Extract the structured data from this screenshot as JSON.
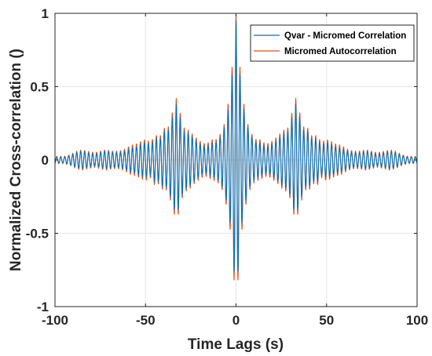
{
  "chart_data": {
    "type": "line",
    "title": "",
    "xlabel": "Time Lags (s)",
    "ylabel": "Normalized Cross-correlation ()",
    "xlim": [
      -100,
      100
    ],
    "ylim": [
      -1,
      1
    ],
    "x_ticks": [
      -100,
      -50,
      0,
      50,
      100
    ],
    "y_ticks": [
      -1,
      -0.5,
      0,
      0.5,
      1
    ],
    "x_tick_labels": [
      "-100",
      "-50",
      "0",
      "50",
      "100"
    ],
    "y_tick_labels": [
      "-1",
      "-0.5",
      "0",
      "0.5",
      "1"
    ],
    "grid": true,
    "legend_position": "top-right",
    "sampling_step_s": 0.1,
    "series": [
      {
        "name": "Qvar - Micromed Correlation",
        "color": "#0072BD",
        "oscillation_period_s": 2.2,
        "envelope": [
          [
            -100,
            0.02
          ],
          [
            -95,
            0.02
          ],
          [
            -92,
            0.03
          ],
          [
            -88,
            0.05
          ],
          [
            -85,
            0.06
          ],
          [
            -82,
            0.05
          ],
          [
            -78,
            0.04
          ],
          [
            -75,
            0.05
          ],
          [
            -72,
            0.06
          ],
          [
            -68,
            0.05
          ],
          [
            -65,
            0.05
          ],
          [
            -62,
            0.06
          ],
          [
            -58,
            0.08
          ],
          [
            -55,
            0.09
          ],
          [
            -52,
            0.11
          ],
          [
            -50,
            0.12
          ],
          [
            -47,
            0.1
          ],
          [
            -45,
            0.15
          ],
          [
            -42,
            0.14
          ],
          [
            -40,
            0.2
          ],
          [
            -38,
            0.18
          ],
          [
            -35,
            0.3
          ],
          [
            -33,
            0.38
          ],
          [
            -31,
            0.3
          ],
          [
            -29,
            0.2
          ],
          [
            -27,
            0.19
          ],
          [
            -25,
            0.17
          ],
          [
            -23,
            0.14
          ],
          [
            -21,
            0.12
          ],
          [
            -19,
            0.1
          ],
          [
            -17,
            0.09
          ],
          [
            -15,
            0.1
          ],
          [
            -13,
            0.12
          ],
          [
            -11,
            0.12
          ],
          [
            -9,
            0.15
          ],
          [
            -7,
            0.2
          ],
          [
            -5,
            0.3
          ],
          [
            -3,
            0.45
          ],
          [
            -1.5,
            0.7
          ],
          [
            -0.5,
            0.85
          ],
          [
            0,
            0.95
          ],
          [
            0.5,
            0.85
          ],
          [
            1.5,
            0.7
          ],
          [
            3,
            0.45
          ],
          [
            5,
            0.3
          ],
          [
            7,
            0.2
          ],
          [
            9,
            0.15
          ],
          [
            11,
            0.12
          ],
          [
            13,
            0.12
          ],
          [
            15,
            0.1
          ],
          [
            17,
            0.09
          ],
          [
            19,
            0.1
          ],
          [
            21,
            0.12
          ],
          [
            23,
            0.14
          ],
          [
            25,
            0.17
          ],
          [
            27,
            0.19
          ],
          [
            29,
            0.2
          ],
          [
            31,
            0.3
          ],
          [
            33,
            0.38
          ],
          [
            35,
            0.3
          ],
          [
            38,
            0.18
          ],
          [
            40,
            0.2
          ],
          [
            42,
            0.14
          ],
          [
            45,
            0.15
          ],
          [
            47,
            0.1
          ],
          [
            50,
            0.12
          ],
          [
            52,
            0.11
          ],
          [
            55,
            0.09
          ],
          [
            58,
            0.08
          ],
          [
            62,
            0.06
          ],
          [
            65,
            0.05
          ],
          [
            68,
            0.05
          ],
          [
            72,
            0.06
          ],
          [
            75,
            0.05
          ],
          [
            78,
            0.04
          ],
          [
            82,
            0.05
          ],
          [
            85,
            0.06
          ],
          [
            88,
            0.05
          ],
          [
            92,
            0.03
          ],
          [
            95,
            0.02
          ],
          [
            100,
            0.02
          ]
        ]
      },
      {
        "name": "Micromed Autocorrelation",
        "color": "#D95319",
        "oscillation_period_s": 2.2,
        "envelope": [
          [
            -100,
            0.025
          ],
          [
            -95,
            0.025
          ],
          [
            -92,
            0.035
          ],
          [
            -88,
            0.06
          ],
          [
            -85,
            0.07
          ],
          [
            -82,
            0.06
          ],
          [
            -78,
            0.05
          ],
          [
            -75,
            0.06
          ],
          [
            -72,
            0.07
          ],
          [
            -68,
            0.06
          ],
          [
            -65,
            0.06
          ],
          [
            -62,
            0.07
          ],
          [
            -58,
            0.1
          ],
          [
            -55,
            0.11
          ],
          [
            -52,
            0.13
          ],
          [
            -50,
            0.14
          ],
          [
            -47,
            0.12
          ],
          [
            -45,
            0.17
          ],
          [
            -42,
            0.16
          ],
          [
            -40,
            0.22
          ],
          [
            -38,
            0.2
          ],
          [
            -35,
            0.33
          ],
          [
            -33,
            0.42
          ],
          [
            -31,
            0.33
          ],
          [
            -29,
            0.22
          ],
          [
            -27,
            0.21
          ],
          [
            -25,
            0.19
          ],
          [
            -23,
            0.16
          ],
          [
            -21,
            0.14
          ],
          [
            -19,
            0.12
          ],
          [
            -17,
            0.11
          ],
          [
            -15,
            0.12
          ],
          [
            -13,
            0.14
          ],
          [
            -11,
            0.14
          ],
          [
            -9,
            0.17
          ],
          [
            -7,
            0.22
          ],
          [
            -5,
            0.33
          ],
          [
            -3,
            0.5
          ],
          [
            -1.5,
            0.75
          ],
          [
            -0.5,
            0.92
          ],
          [
            0,
            1.0
          ],
          [
            0.5,
            0.92
          ],
          [
            1.5,
            0.75
          ],
          [
            3,
            0.5
          ],
          [
            5,
            0.33
          ],
          [
            7,
            0.22
          ],
          [
            9,
            0.17
          ],
          [
            11,
            0.14
          ],
          [
            13,
            0.14
          ],
          [
            15,
            0.12
          ],
          [
            17,
            0.11
          ],
          [
            19,
            0.12
          ],
          [
            21,
            0.14
          ],
          [
            23,
            0.16
          ],
          [
            25,
            0.19
          ],
          [
            27,
            0.21
          ],
          [
            29,
            0.22
          ],
          [
            31,
            0.33
          ],
          [
            33,
            0.42
          ],
          [
            35,
            0.33
          ],
          [
            38,
            0.2
          ],
          [
            40,
            0.22
          ],
          [
            42,
            0.16
          ],
          [
            45,
            0.17
          ],
          [
            47,
            0.12
          ],
          [
            50,
            0.14
          ],
          [
            52,
            0.13
          ],
          [
            55,
            0.11
          ],
          [
            58,
            0.1
          ],
          [
            62,
            0.07
          ],
          [
            65,
            0.06
          ],
          [
            68,
            0.06
          ],
          [
            72,
            0.07
          ],
          [
            75,
            0.06
          ],
          [
            78,
            0.05
          ],
          [
            82,
            0.06
          ],
          [
            85,
            0.07
          ],
          [
            88,
            0.06
          ],
          [
            92,
            0.035
          ],
          [
            95,
            0.025
          ],
          [
            100,
            0.025
          ]
        ]
      }
    ],
    "grid_color": "#e6e6e6",
    "axis_color": "#262626"
  }
}
